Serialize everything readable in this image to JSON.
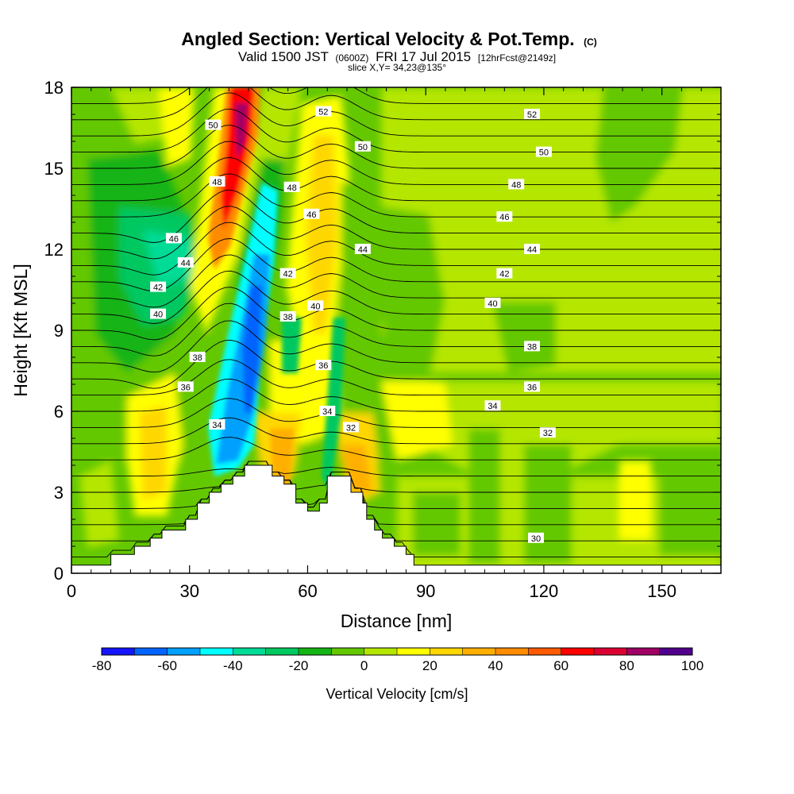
{
  "chart_data": {
    "type": "heatmap",
    "title": "Angled Section: Vertical Velocity & Pot.Temp.",
    "title_mark": "(C)",
    "subtitle": {
      "lead": "Valid 1500 JST",
      "utc": "(0600Z)",
      "date": "FRI 17 Jul 2015",
      "fcst": "[12hrFcst@2149z]"
    },
    "slice": "slice X,Y= 34,23@135°",
    "xlabel": "Distance [nm]",
    "ylabel": "Height [Kft MSL]",
    "xlim": [
      0,
      165
    ],
    "ylim": [
      0,
      18
    ],
    "xticks": [
      "0",
      "30",
      "60",
      "90",
      "120",
      "150"
    ],
    "xtick_values": [
      0,
      30,
      60,
      90,
      120,
      150
    ],
    "yticks": [
      "0",
      "3",
      "6",
      "9",
      "12",
      "15",
      "18"
    ],
    "ytick_values": [
      0,
      3,
      6,
      9,
      12,
      15,
      18
    ],
    "colorbar": {
      "label": "Vertical Velocity [cm/s]",
      "min": -80,
      "max": 100,
      "tick_labels": [
        "-80",
        "-60",
        "-40",
        "-20",
        "0",
        "20",
        "40",
        "60",
        "80",
        "100"
      ],
      "tick_values": [
        -80,
        -60,
        -40,
        -20,
        0,
        20,
        40,
        60,
        80,
        100
      ],
      "colors": [
        "#1414ff",
        "#0064ff",
        "#00a0ff",
        "#00ffff",
        "#00dc96",
        "#00c860",
        "#14b414",
        "#64c800",
        "#b4e600",
        "#ffff00",
        "#ffd700",
        "#ffaf00",
        "#ff8c00",
        "#ff5a00",
        "#ff0000",
        "#dc0032",
        "#a00064",
        "#50008c"
      ]
    },
    "terrain": [
      [
        0,
        0.3
      ],
      [
        10,
        0.3
      ],
      [
        10,
        0.7
      ],
      [
        16,
        0.7
      ],
      [
        16,
        1.0
      ],
      [
        20,
        1.0
      ],
      [
        20,
        1.3
      ],
      [
        23,
        1.3
      ],
      [
        23,
        1.6
      ],
      [
        29,
        1.6
      ],
      [
        29,
        2.0
      ],
      [
        32,
        2.0
      ],
      [
        32,
        2.6
      ],
      [
        35,
        2.6
      ],
      [
        35,
        3.0
      ],
      [
        38,
        3.0
      ],
      [
        38,
        3.3
      ],
      [
        41,
        3.3
      ],
      [
        41,
        3.6
      ],
      [
        44,
        3.6
      ],
      [
        44,
        4.0
      ],
      [
        51,
        4.0
      ],
      [
        51,
        3.6
      ],
      [
        54,
        3.6
      ],
      [
        54,
        3.3
      ],
      [
        57,
        3.3
      ],
      [
        57,
        2.6
      ],
      [
        60,
        2.6
      ],
      [
        60,
        2.3
      ],
      [
        63,
        2.3
      ],
      [
        63,
        2.6
      ],
      [
        65,
        2.6
      ],
      [
        65,
        3.6
      ],
      [
        71,
        3.6
      ],
      [
        71,
        3.0
      ],
      [
        74,
        3.0
      ],
      [
        74,
        2.6
      ],
      [
        75,
        2.6
      ],
      [
        75,
        2.0
      ],
      [
        77,
        2.0
      ],
      [
        77,
        1.6
      ],
      [
        79,
        1.6
      ],
      [
        79,
        1.3
      ],
      [
        82,
        1.3
      ],
      [
        82,
        1.0
      ],
      [
        85,
        1.0
      ],
      [
        85,
        0.7
      ],
      [
        87,
        0.7
      ],
      [
        87,
        0.3
      ],
      [
        165,
        0.3
      ]
    ],
    "isentrope_labels": [
      {
        "text": "52",
        "x": 64,
        "y": 17.1
      },
      {
        "text": "52",
        "x": 117,
        "y": 17.0
      },
      {
        "text": "50",
        "x": 36,
        "y": 16.6
      },
      {
        "text": "50",
        "x": 74,
        "y": 15.8
      },
      {
        "text": "50",
        "x": 120,
        "y": 15.6
      },
      {
        "text": "48",
        "x": 37,
        "y": 14.5
      },
      {
        "text": "48",
        "x": 56,
        "y": 14.3
      },
      {
        "text": "48",
        "x": 113,
        "y": 14.4
      },
      {
        "text": "46",
        "x": 26,
        "y": 12.4
      },
      {
        "text": "46",
        "x": 61,
        "y": 13.3
      },
      {
        "text": "46",
        "x": 110,
        "y": 13.2
      },
      {
        "text": "44",
        "x": 29,
        "y": 11.5
      },
      {
        "text": "44",
        "x": 74,
        "y": 12.0
      },
      {
        "text": "44",
        "x": 117,
        "y": 12.0
      },
      {
        "text": "42",
        "x": 22,
        "y": 10.6
      },
      {
        "text": "42",
        "x": 55,
        "y": 11.1
      },
      {
        "text": "42",
        "x": 110,
        "y": 11.1
      },
      {
        "text": "40",
        "x": 22,
        "y": 9.6
      },
      {
        "text": "40",
        "x": 62,
        "y": 9.9
      },
      {
        "text": "40",
        "x": 107,
        "y": 10.0
      },
      {
        "text": "38",
        "x": 55,
        "y": 9.5
      },
      {
        "text": "38",
        "x": 32,
        "y": 8.0
      },
      {
        "text": "38",
        "x": 117,
        "y": 8.4
      },
      {
        "text": "36",
        "x": 29,
        "y": 6.9
      },
      {
        "text": "36",
        "x": 64,
        "y": 7.7
      },
      {
        "text": "36",
        "x": 117,
        "y": 6.9
      },
      {
        "text": "34",
        "x": 37,
        "y": 5.5
      },
      {
        "text": "34",
        "x": 65,
        "y": 6.0
      },
      {
        "text": "34",
        "x": 107,
        "y": 6.2
      },
      {
        "text": "32",
        "x": 71,
        "y": 5.4
      },
      {
        "text": "32",
        "x": 121,
        "y": 5.2
      },
      {
        "text": "30",
        "x": 118,
        "y": 1.3
      }
    ]
  }
}
